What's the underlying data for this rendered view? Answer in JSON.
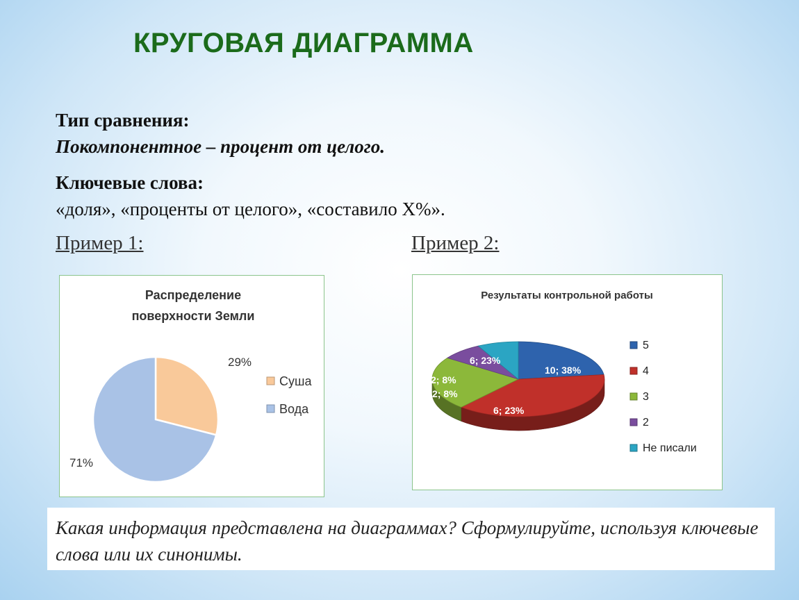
{
  "slide": {
    "title": "КРУГОВАЯ ДИАГРАММА",
    "comparison_heading": "Тип сравнения:",
    "comparison_value": "Покомпонентное – процент от целого.",
    "keywords_heading": "Ключевые слова:",
    "keywords_value": "«доля», «проценты от целого», «составило Х%».",
    "example1_label": "Пример 1:",
    "example2_label": "Пример 2:",
    "question": "Какая информация представлена на диаграммах? Сформулируйте, используя ключевые слова или их синонимы."
  },
  "chart_data": [
    {
      "type": "pie",
      "title": "Распределение поверхности Земли",
      "categories": [
        "Суша",
        "Вода"
      ],
      "values": [
        29,
        71
      ],
      "data_labels": [
        "29%",
        "71%"
      ],
      "colors": [
        "#f9c99a",
        "#a9c2e6"
      ],
      "legend_position": "right"
    },
    {
      "type": "pie",
      "style": "3d",
      "title": "Результаты контрольной работы",
      "categories": [
        "5",
        "4",
        "3",
        "2",
        "Не писали"
      ],
      "values": [
        6,
        10,
        6,
        2,
        2
      ],
      "percent": [
        23,
        38,
        23,
        8,
        8
      ],
      "data_labels": [
        "6; 23%",
        "10; 38%",
        "6; 23%",
        "2; 8%",
        "2; 8%"
      ],
      "colors": [
        "#2e63ad",
        "#c0302a",
        "#8cb83a",
        "#7a4d9e",
        "#2ba5c3"
      ],
      "legend_position": "right"
    }
  ]
}
